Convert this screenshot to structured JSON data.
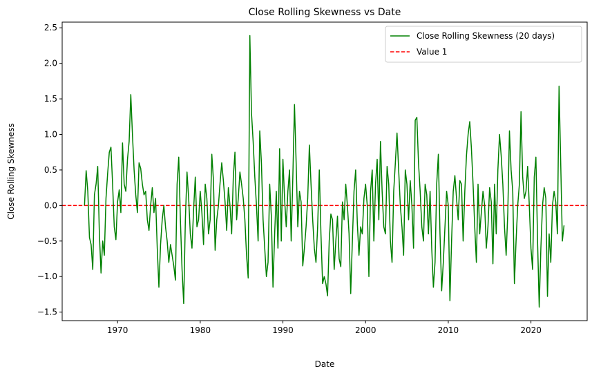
{
  "chart_data": {
    "type": "line",
    "title": "Close Rolling Skewness vs Date",
    "xlabel": "Date",
    "ylabel": "Close Rolling Skewness",
    "xlim": [
      1963.3,
      2026.8
    ],
    "ylim": [
      -1.62,
      2.58
    ],
    "xticks": [
      1970,
      1980,
      1990,
      2000,
      2010,
      2020
    ],
    "yticks": [
      -1.5,
      -1.0,
      -0.5,
      0.0,
      0.5,
      1.0,
      1.5,
      2.0,
      2.5
    ],
    "ytick_labels": [
      "−1.5",
      "−1.0",
      "−0.5",
      "0.0",
      "0.5",
      "1.0",
      "1.5",
      "2.0",
      "2.5"
    ],
    "grid": false,
    "legend_position": "top-right",
    "colors": {
      "series": "#008000",
      "reference": "#ff0000"
    },
    "series": [
      {
        "name": "Close Rolling Skewness (20 days)",
        "style": "solid",
        "x": [
          1966.0,
          1966.2,
          1966.4,
          1966.6,
          1966.8,
          1967.0,
          1967.2,
          1967.4,
          1967.6,
          1967.8,
          1968.0,
          1968.2,
          1968.4,
          1968.6,
          1968.8,
          1969.0,
          1969.2,
          1969.4,
          1969.6,
          1969.8,
          1970.0,
          1970.2,
          1970.4,
          1970.6,
          1970.8,
          1971.0,
          1971.2,
          1971.4,
          1971.6,
          1971.8,
          1972.0,
          1972.2,
          1972.4,
          1972.6,
          1972.8,
          1973.0,
          1973.2,
          1973.4,
          1973.6,
          1973.8,
          1974.0,
          1974.2,
          1974.4,
          1974.6,
          1974.8,
          1975.0,
          1975.2,
          1975.4,
          1975.6,
          1975.8,
          1976.0,
          1976.2,
          1976.4,
          1976.6,
          1976.8,
          1977.0,
          1977.2,
          1977.4,
          1977.6,
          1977.8,
          1978.0,
          1978.2,
          1978.4,
          1978.6,
          1978.8,
          1979.0,
          1979.2,
          1979.4,
          1979.6,
          1979.8,
          1980.0,
          1980.2,
          1980.4,
          1980.6,
          1980.8,
          1981.0,
          1981.2,
          1981.4,
          1981.6,
          1981.8,
          1982.0,
          1982.2,
          1982.4,
          1982.6,
          1982.8,
          1983.0,
          1983.2,
          1983.4,
          1983.6,
          1983.8,
          1984.0,
          1984.2,
          1984.4,
          1984.6,
          1984.8,
          1985.0,
          1985.2,
          1985.4,
          1985.6,
          1985.8,
          1986.0,
          1986.2,
          1986.4,
          1986.6,
          1986.8,
          1987.0,
          1987.2,
          1987.4,
          1987.6,
          1987.8,
          1988.0,
          1988.2,
          1988.4,
          1988.6,
          1988.8,
          1989.0,
          1989.2,
          1989.4,
          1989.6,
          1989.8,
          1990.0,
          1990.2,
          1990.4,
          1990.6,
          1990.8,
          1991.0,
          1991.2,
          1991.4,
          1991.6,
          1991.8,
          1992.0,
          1992.2,
          1992.4,
          1992.6,
          1992.8,
          1993.0,
          1993.2,
          1993.4,
          1993.6,
          1993.8,
          1994.0,
          1994.2,
          1994.4,
          1994.6,
          1994.8,
          1995.0,
          1995.2,
          1995.4,
          1995.6,
          1995.8,
          1996.0,
          1996.2,
          1996.4,
          1996.6,
          1996.8,
          1997.0,
          1997.2,
          1997.4,
          1997.6,
          1997.8,
          1998.0,
          1998.2,
          1998.4,
          1998.6,
          1998.8,
          1999.0,
          1999.2,
          1999.4,
          1999.6,
          1999.8,
          2000.0,
          2000.2,
          2000.4,
          2000.6,
          2000.8,
          2001.0,
          2001.2,
          2001.4,
          2001.6,
          2001.8,
          2002.0,
          2002.2,
          2002.4,
          2002.6,
          2002.8,
          2003.0,
          2003.2,
          2003.4,
          2003.6,
          2003.8,
          2004.0,
          2004.2,
          2004.4,
          2004.6,
          2004.8,
          2005.0,
          2005.2,
          2005.4,
          2005.6,
          2005.8,
          2006.0,
          2006.2,
          2006.4,
          2006.6,
          2006.8,
          2007.0,
          2007.2,
          2007.4,
          2007.6,
          2007.8,
          2008.0,
          2008.2,
          2008.4,
          2008.6,
          2008.8,
          2009.0,
          2009.2,
          2009.4,
          2009.6,
          2009.8,
          2010.0,
          2010.2,
          2010.4,
          2010.6,
          2010.8,
          2011.0,
          2011.2,
          2011.4,
          2011.6,
          2011.8,
          2012.0,
          2012.2,
          2012.4,
          2012.6,
          2012.8,
          2013.0,
          2013.2,
          2013.4,
          2013.6,
          2013.8,
          2014.0,
          2014.2,
          2014.4,
          2014.6,
          2014.8,
          2015.0,
          2015.2,
          2015.4,
          2015.6,
          2015.8,
          2016.0,
          2016.2,
          2016.4,
          2016.6,
          2016.8,
          2017.0,
          2017.2,
          2017.4,
          2017.6,
          2017.8,
          2018.0,
          2018.2,
          2018.4,
          2018.6,
          2018.8,
          2019.0,
          2019.2,
          2019.4,
          2019.6,
          2019.8,
          2020.0,
          2020.2,
          2020.4,
          2020.6,
          2020.8,
          2021.0,
          2021.2,
          2021.4,
          2021.6,
          2021.8,
          2022.0,
          2022.2,
          2022.4,
          2022.6,
          2022.8,
          2023.0,
          2023.2,
          2023.4,
          2023.6,
          2023.8,
          2024.0
        ],
        "y": [
          0.0,
          0.49,
          0.2,
          -0.45,
          -0.55,
          -0.9,
          0.15,
          0.3,
          0.55,
          -0.4,
          -0.95,
          -0.5,
          -0.7,
          0.1,
          0.45,
          0.75,
          0.82,
          0.3,
          -0.3,
          -0.48,
          0.05,
          0.22,
          -0.1,
          0.88,
          0.3,
          0.2,
          0.65,
          0.9,
          1.56,
          1.0,
          0.5,
          0.15,
          -0.1,
          0.6,
          0.52,
          0.3,
          0.15,
          0.2,
          -0.2,
          -0.35,
          0.0,
          0.25,
          -0.1,
          0.1,
          -0.6,
          -1.15,
          -0.55,
          -0.2,
          0.0,
          -0.3,
          -0.5,
          -0.8,
          -0.55,
          -0.7,
          -0.85,
          -1.05,
          0.3,
          0.68,
          -0.2,
          -0.9,
          -1.38,
          -0.2,
          0.47,
          0.1,
          -0.4,
          -0.6,
          -0.05,
          0.4,
          -0.3,
          -0.2,
          0.2,
          -0.1,
          -0.55,
          0.3,
          0.1,
          -0.4,
          -0.2,
          0.72,
          0.35,
          -0.63,
          -0.2,
          0.0,
          0.32,
          0.6,
          0.35,
          0.05,
          -0.35,
          0.25,
          0.0,
          -0.4,
          0.4,
          0.75,
          -0.2,
          0.1,
          0.47,
          0.3,
          0.1,
          -0.2,
          -0.7,
          -1.02,
          2.39,
          1.3,
          0.9,
          0.4,
          0.0,
          -0.5,
          1.05,
          0.6,
          -0.2,
          -0.6,
          -1.0,
          -0.8,
          0.3,
          -0.15,
          -1.15,
          -0.4,
          0.2,
          -0.6,
          0.8,
          -0.5,
          0.65,
          0.1,
          -0.3,
          0.2,
          0.5,
          -0.5,
          0.4,
          1.42,
          0.6,
          -0.3,
          0.2,
          0.05,
          -0.85,
          -0.6,
          -0.3,
          0.1,
          0.85,
          0.3,
          -0.2,
          -0.6,
          -0.8,
          -0.3,
          0.5,
          -0.4,
          -1.1,
          -1.0,
          -1.1,
          -1.27,
          -0.5,
          -0.12,
          -0.2,
          -0.9,
          -0.5,
          -0.15,
          -0.75,
          -0.86,
          0.05,
          -0.2,
          0.3,
          0.0,
          -0.4,
          -1.24,
          -0.5,
          0.2,
          0.5,
          -0.25,
          -0.7,
          -0.3,
          -0.4,
          0.1,
          0.3,
          0.0,
          -1.0,
          0.2,
          0.5,
          -0.5,
          0.3,
          0.65,
          -0.2,
          0.9,
          0.2,
          -0.3,
          -0.4,
          0.55,
          0.3,
          -0.5,
          -0.8,
          0.2,
          0.6,
          1.02,
          0.5,
          0.0,
          -0.3,
          -0.7,
          0.5,
          0.3,
          -0.2,
          0.35,
          0.0,
          -0.6,
          1.2,
          1.24,
          0.6,
          0.2,
          -0.3,
          -0.5,
          0.3,
          0.15,
          -0.4,
          0.2,
          -0.6,
          -1.15,
          -0.8,
          0.3,
          0.72,
          -0.4,
          -1.2,
          -0.8,
          -0.3,
          0.2,
          0.0,
          -1.34,
          -0.5,
          0.2,
          0.42,
          0.1,
          -0.2,
          0.35,
          0.3,
          -0.5,
          0.2,
          0.7,
          1.0,
          1.18,
          0.8,
          0.3,
          -0.3,
          -0.8,
          0.3,
          -0.4,
          -0.1,
          0.2,
          0.0,
          -0.6,
          -0.3,
          0.25,
          0.05,
          -0.82,
          0.3,
          -0.4,
          0.5,
          1.0,
          0.7,
          0.3,
          -0.3,
          -0.7,
          -0.1,
          1.05,
          0.5,
          0.2,
          -1.1,
          -0.5,
          0.0,
          0.3,
          1.32,
          0.4,
          0.1,
          0.2,
          0.55,
          0.0,
          -0.6,
          -0.9,
          0.4,
          0.68,
          -0.5,
          -1.43,
          -0.6,
          0.0,
          0.25,
          0.1,
          -1.28,
          -0.4,
          -0.8,
          0.0,
          0.2,
          0.05,
          -0.4,
          1.68,
          0.6,
          -0.5,
          -0.28
        ]
      },
      {
        "name": "Value 1",
        "style": "dashed",
        "value": 0
      }
    ]
  }
}
